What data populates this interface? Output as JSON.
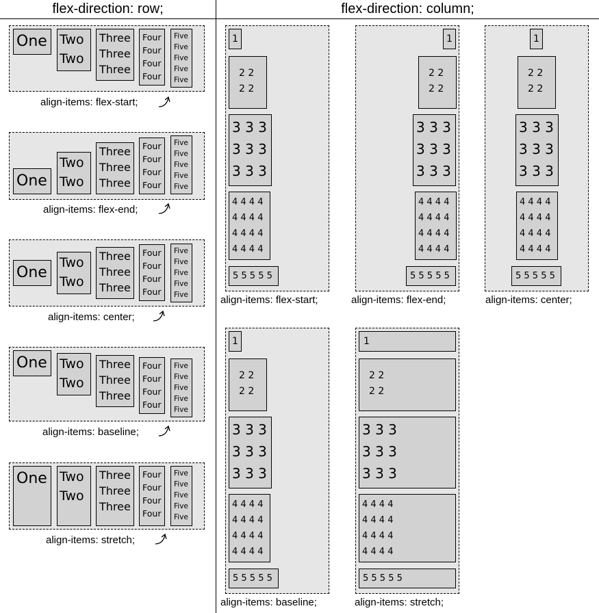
{
  "headers": {
    "row": "flex-direction: row;",
    "column": "flex-direction: column;"
  },
  "items": {
    "one": "One",
    "two": "Two\nTwo",
    "three": "Three\nThree\nThree",
    "four": "Four\nFour\nFour\nFour",
    "five": "Five\nFive\nFive\nFive\nFive",
    "c1": "1",
    "c2": "2 2\n2 2",
    "c3": "3 3 3\n3 3 3\n3 3 3",
    "c4": "4 4 4 4\n4 4 4 4\n4 4 4 4\n4 4 4 4",
    "c5": "5 5 5 5 5"
  },
  "row_labels": [
    "align-items: flex-start;",
    "align-items: flex-end;",
    "align-items: center;",
    "align-items: baseline;",
    "align-items: stretch;"
  ],
  "column_labels": [
    "align-items: flex-start;",
    "align-items: flex-end;",
    "align-items: center;",
    "align-items: baseline;",
    "align-items: stretch;"
  ]
}
